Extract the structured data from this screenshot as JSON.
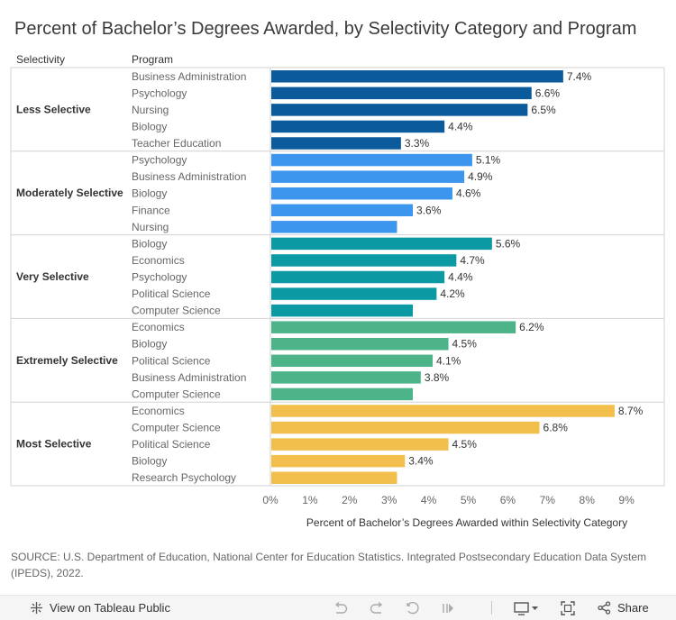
{
  "header": {
    "title": "Percent of Bachelor’s Degrees Awarded, by Selectivity Category and Program"
  },
  "columns": {
    "selectivity": "Selectivity",
    "program": "Program"
  },
  "chart_data": {
    "type": "bar",
    "orientation": "horizontal",
    "xlabel": "Percent of Bachelor’s Degrees Awarded within Selectivity Category",
    "xlim": [
      0,
      9
    ],
    "xticks": [
      0,
      1,
      2,
      3,
      4,
      5,
      6,
      7,
      8,
      9
    ],
    "xtick_labels": [
      "0%",
      "1%",
      "2%",
      "3%",
      "4%",
      "5%",
      "6%",
      "7%",
      "8%",
      "9%"
    ],
    "groups": [
      {
        "name": "Less Selective",
        "color": "#0a5a9c",
        "items": [
          {
            "program": "Business Administration",
            "value": 7.4,
            "label": "7.4%"
          },
          {
            "program": "Psychology",
            "value": 6.6,
            "label": "6.6%"
          },
          {
            "program": "Nursing",
            "value": 6.5,
            "label": "6.5%"
          },
          {
            "program": "Biology",
            "value": 4.4,
            "label": "4.4%"
          },
          {
            "program": "Teacher Education",
            "value": 3.3,
            "label": "3.3%"
          }
        ]
      },
      {
        "name": "Moderately Selective",
        "color": "#3d96ee",
        "items": [
          {
            "program": "Psychology",
            "value": 5.1,
            "label": "5.1%"
          },
          {
            "program": "Business Administration",
            "value": 4.9,
            "label": "4.9%"
          },
          {
            "program": "Biology",
            "value": 4.6,
            "label": "4.6%"
          },
          {
            "program": "Finance",
            "value": 3.6,
            "label": "3.6%"
          },
          {
            "program": "Nursing",
            "value": 3.2,
            "label": ""
          }
        ]
      },
      {
        "name": "Very Selective",
        "color": "#0b9aa3",
        "items": [
          {
            "program": "Biology",
            "value": 5.6,
            "label": "5.6%"
          },
          {
            "program": "Economics",
            "value": 4.7,
            "label": "4.7%"
          },
          {
            "program": "Psychology",
            "value": 4.4,
            "label": "4.4%"
          },
          {
            "program": "Political Science",
            "value": 4.2,
            "label": "4.2%"
          },
          {
            "program": "Computer Science",
            "value": 3.6,
            "label": ""
          }
        ]
      },
      {
        "name": "Extremely Selective",
        "color": "#4db489",
        "items": [
          {
            "program": "Economics",
            "value": 6.2,
            "label": "6.2%"
          },
          {
            "program": "Biology",
            "value": 4.5,
            "label": "4.5%"
          },
          {
            "program": "Political Science",
            "value": 4.1,
            "label": "4.1%"
          },
          {
            "program": "Business Administration",
            "value": 3.8,
            "label": "3.8%"
          },
          {
            "program": "Computer Science",
            "value": 3.6,
            "label": ""
          }
        ]
      },
      {
        "name": "Most Selective",
        "color": "#f2bf4c",
        "items": [
          {
            "program": "Economics",
            "value": 8.7,
            "label": "8.7%"
          },
          {
            "program": "Computer Science",
            "value": 6.8,
            "label": "6.8%"
          },
          {
            "program": "Political Science",
            "value": 4.5,
            "label": "4.5%"
          },
          {
            "program": "Biology",
            "value": 3.4,
            "label": "3.4%"
          },
          {
            "program": "Research Psychology",
            "value": 3.2,
            "label": ""
          }
        ]
      }
    ]
  },
  "source": "SOURCE: U.S. Department of Education, National Center for Education Statistics. Integrated Postsecondary Education Data System (IPEDS), 2022.",
  "toolbar": {
    "view_label": "View on Tableau Public",
    "share_label": "Share",
    "icons": [
      "tableau-icon",
      "undo-icon",
      "redo-icon",
      "revert-icon",
      "pause-icon",
      "download-icon",
      "fullscreen-icon",
      "share-icon"
    ]
  }
}
